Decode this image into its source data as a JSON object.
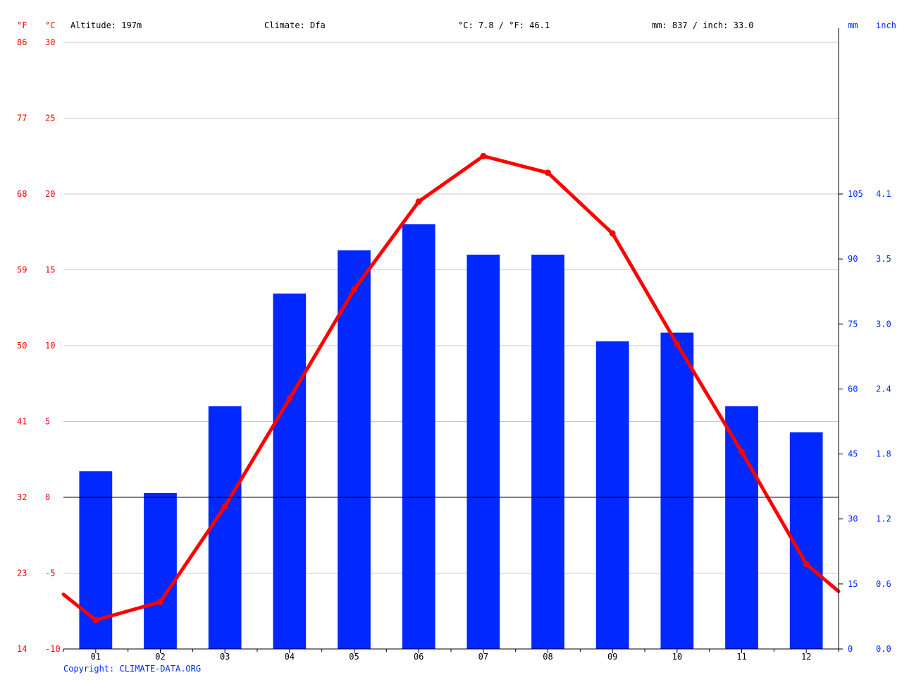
{
  "header": {
    "unit_f": "°F",
    "unit_c": "°C",
    "altitude": "Altitude: 197m",
    "climate": "Climate: Dfa",
    "temp_summary": "°C: 7.8 / °F: 46.1",
    "precip_summary": "mm: 837 / inch: 33.0",
    "unit_mm": "mm",
    "unit_inch": "inch"
  },
  "footer": {
    "copyright": "Copyright: CLIMATE-DATA.ORG"
  },
  "colors": {
    "temperature": "#ff0000",
    "precipitation": "#0028ff",
    "grid": "#c8c8c8",
    "axis_text_left": "#ff0000",
    "axis_text_right": "#0028ff",
    "zero_line": "#000000"
  },
  "chart_data": {
    "type": "bar",
    "categories": [
      "01",
      "02",
      "03",
      "04",
      "05",
      "06",
      "07",
      "08",
      "09",
      "10",
      "11",
      "12"
    ],
    "series": [
      {
        "values": [
          41,
          36,
          56,
          82,
          92,
          98,
          91,
          91,
          71,
          73,
          56,
          50
        ]
      },
      {
        "values": [
          -8.1,
          -6.9,
          -0.6,
          6.5,
          13.7,
          19.5,
          22.5,
          21.4,
          17.4,
          10.1,
          3.0,
          -4.4
        ]
      }
    ],
    "temp_edges": [
      -6.4,
      -6.2
    ],
    "y_left_c": {
      "ticks": [
        "30",
        "25",
        "20",
        "15",
        "10",
        "5",
        "0",
        "-5",
        "-10"
      ],
      "range": [
        -10,
        30
      ]
    },
    "y_left_f": {
      "ticks": [
        "86",
        "77",
        "68",
        "59",
        "50",
        "41",
        "32",
        "23",
        "14"
      ]
    },
    "y_right_mm": {
      "ticks": [
        "105",
        "90",
        "75",
        "60",
        "45",
        "30",
        "15",
        "0"
      ],
      "range": [
        0,
        140
      ]
    },
    "y_right_inch": {
      "ticks": [
        "4.1",
        "3.5",
        "3.0",
        "2.4",
        "1.8",
        "1.2",
        "0.6",
        "0.0"
      ]
    },
    "grid": true
  }
}
